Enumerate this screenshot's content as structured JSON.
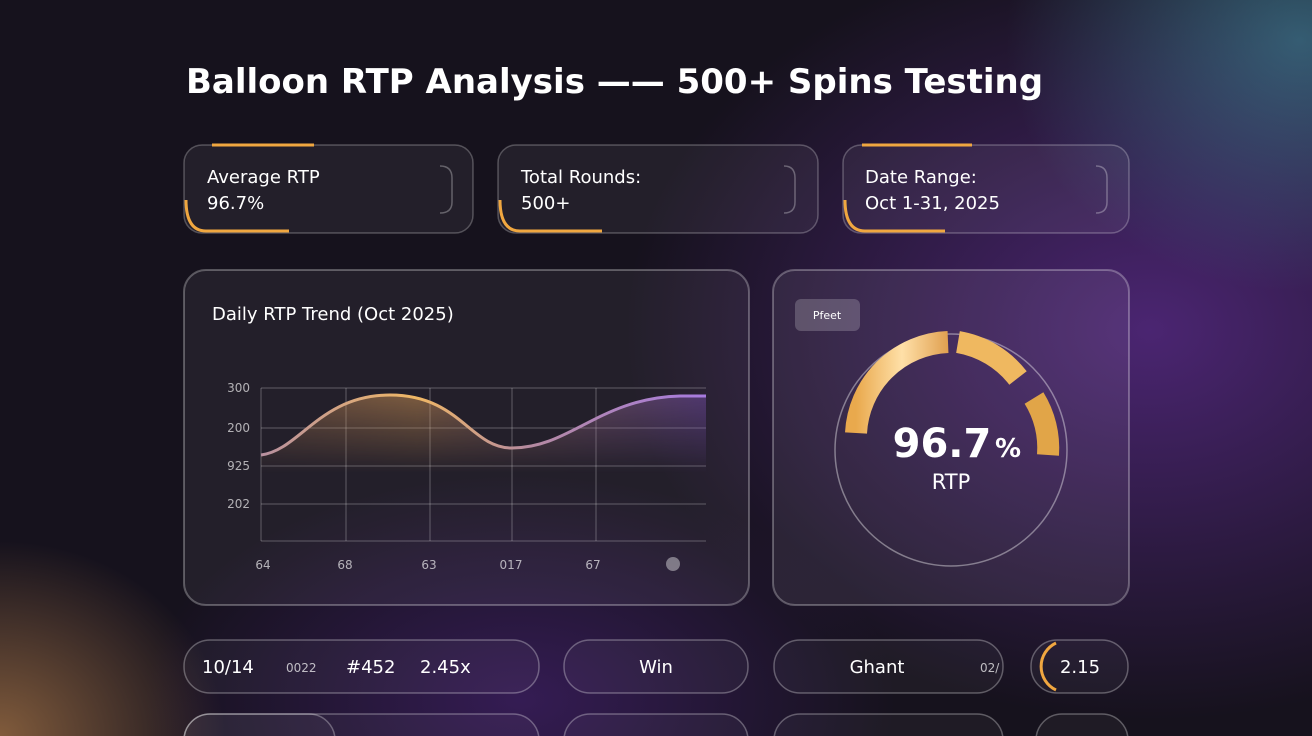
{
  "header": {
    "title": "Balloon RTP Analysis —— 500+ Spins Testing"
  },
  "stats": [
    {
      "label": "Average RTP",
      "value": "96.7%"
    },
    {
      "label": "Total Rounds:",
      "value": "500+"
    },
    {
      "label": "Date Range:",
      "value": "Oct 1-31, 2025"
    }
  ],
  "trend": {
    "title": "Daily RTP Trend (Oct 2025)",
    "y_labels": [
      "300",
      "200",
      "925",
      "202"
    ],
    "x_labels": [
      "64",
      "68",
      "63",
      "017",
      "67"
    ]
  },
  "gauge": {
    "badge": "Pfeet",
    "value": "96.7",
    "unit": "%",
    "label": "RTP"
  },
  "rows": [
    {
      "cells": [
        "10/14",
        "0022",
        "#452",
        "2.45x"
      ],
      "result": "Win",
      "name": "Ghant",
      "code": "02/",
      "multiplier": "2.15"
    }
  ]
}
